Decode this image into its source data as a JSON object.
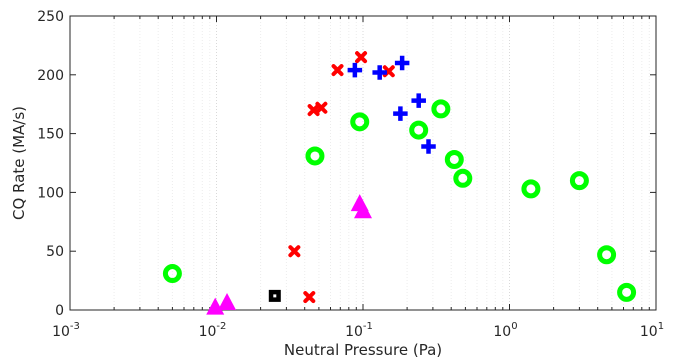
{
  "chart_data": {
    "type": "scatter",
    "title": "",
    "xlabel": "Neutral Pressure (Pa)",
    "ylabel": "CQ Rate (MA/s)",
    "xscale": "log",
    "xlim": [
      0.001,
      10
    ],
    "ylim": [
      0,
      250
    ],
    "grid": "x-only (major and minor, dotted)",
    "legend": "none",
    "x_ticks": [
      {
        "base": "10",
        "exp": "-3",
        "value": 0.001
      },
      {
        "base": "10",
        "exp": "-2",
        "value": 0.01
      },
      {
        "base": "10",
        "exp": "-1",
        "value": 0.1
      },
      {
        "base": "10",
        "exp": "0",
        "value": 1
      },
      {
        "base": "10",
        "exp": "1",
        "value": 10
      }
    ],
    "y_ticks": [
      "0",
      "50",
      "100",
      "150",
      "200",
      "250"
    ],
    "series": [
      {
        "marker": "ring",
        "color": "#00ff00",
        "points": [
          [
            0.005,
            31
          ],
          [
            0.047,
            131
          ],
          [
            0.095,
            160
          ],
          [
            0.24,
            153
          ],
          [
            0.34,
            171
          ],
          [
            0.42,
            128
          ],
          [
            0.48,
            112
          ],
          [
            1.4,
            103
          ],
          [
            3.0,
            110
          ],
          [
            4.6,
            47
          ],
          [
            6.3,
            15
          ]
        ]
      },
      {
        "marker": "x",
        "color": "#ff0000",
        "points": [
          [
            0.034,
            50
          ],
          [
            0.043,
            11
          ],
          [
            0.046,
            170
          ],
          [
            0.052,
            172
          ],
          [
            0.067,
            204
          ],
          [
            0.097,
            215
          ],
          [
            0.15,
            203
          ]
        ]
      },
      {
        "marker": "plus",
        "color": "#0000ff",
        "points": [
          [
            0.088,
            204
          ],
          [
            0.13,
            202
          ],
          [
            0.18,
            167
          ],
          [
            0.185,
            210
          ],
          [
            0.24,
            178
          ],
          [
            0.28,
            139
          ]
        ]
      },
      {
        "marker": "triangle",
        "color": "#ff00ff",
        "points": [
          [
            0.0098,
            2
          ],
          [
            0.0118,
            6
          ],
          [
            0.095,
            90
          ],
          [
            0.1,
            84
          ]
        ]
      },
      {
        "marker": "square",
        "color": "#000000",
        "points": [
          [
            0.025,
            12
          ]
        ]
      }
    ]
  }
}
